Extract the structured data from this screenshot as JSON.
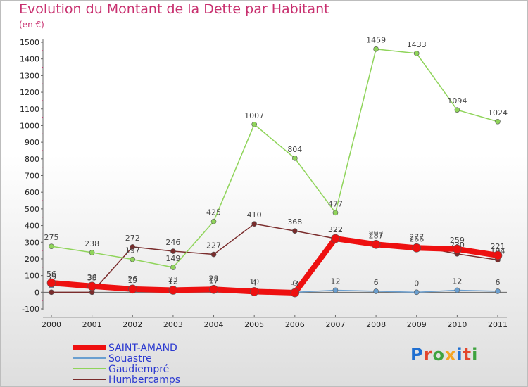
{
  "header": {
    "title": "Evolution du Montant de la Dette par Habitant",
    "unit": "(en €)"
  },
  "logo": {
    "text": "Proxiti",
    "letter_colors": [
      "#1f6fd1",
      "#e2452c",
      "#3fa33f",
      "#f5a623",
      "#1f6fd1",
      "#e2452c",
      "#3fa33f"
    ]
  },
  "chart_data": {
    "type": "line",
    "x": [
      "2000",
      "2001",
      "2002",
      "2003",
      "2004",
      "2005",
      "2006",
      "2007",
      "2008",
      "2009",
      "2010",
      "2011"
    ],
    "ylim": [
      -100,
      1500
    ],
    "yticks": [
      -100,
      0,
      100,
      200,
      300,
      400,
      500,
      600,
      700,
      800,
      900,
      1000,
      1100,
      1200,
      1300,
      1400,
      1500
    ],
    "grid": false,
    "legend_position": "bottom-left",
    "series": [
      {
        "name": "Humbercamps",
        "color": "#7a2c2c",
        "values": [
          0,
          0,
          272,
          246,
          227,
          410,
          368,
          322,
          297,
          277,
          230,
          194
        ],
        "labels": [
          "",
          "",
          "272",
          "246",
          "227",
          "410",
          "368",
          "322",
          "297",
          "277",
          "230",
          "194"
        ]
      },
      {
        "name": "Gaudiempré",
        "color": "#8fd45a",
        "values": [
          275,
          238,
          197,
          149,
          425,
          1007,
          804,
          477,
          1459,
          1433,
          1094,
          1024
        ],
        "labels": [
          "275",
          "238",
          "197",
          "149",
          "425",
          "1007",
          "804",
          "477",
          "1459",
          "1433",
          "1094",
          "1024"
        ]
      },
      {
        "name": "Souastre",
        "color": "#6a9fd0",
        "values": [
          39,
          33,
          26,
          23,
          28,
          10,
          0,
          12,
          6,
          0,
          12,
          6
        ],
        "labels": [
          "39",
          "33",
          "26",
          "23",
          "28",
          "10",
          "0",
          "12",
          "6",
          "0",
          "12",
          "6"
        ]
      },
      {
        "name": "SAINT-AMAND",
        "color": "#ee1010",
        "values": [
          56,
          36,
          19,
          12,
          17,
          4,
          -3,
          322,
          287,
          266,
          259,
          221
        ],
        "labels": [
          "56",
          "36",
          "19",
          "12",
          "17",
          "4",
          "-3",
          "322",
          "287",
          "266",
          "259",
          "221"
        ]
      }
    ],
    "legend": [
      {
        "name": "SAINT-AMAND",
        "color": "#ee1010"
      },
      {
        "name": "Souastre",
        "color": "#6a9fd0"
      },
      {
        "name": "Gaudiempré",
        "color": "#8fd45a"
      },
      {
        "name": "Humbercamps",
        "color": "#7a2c2c"
      }
    ]
  }
}
